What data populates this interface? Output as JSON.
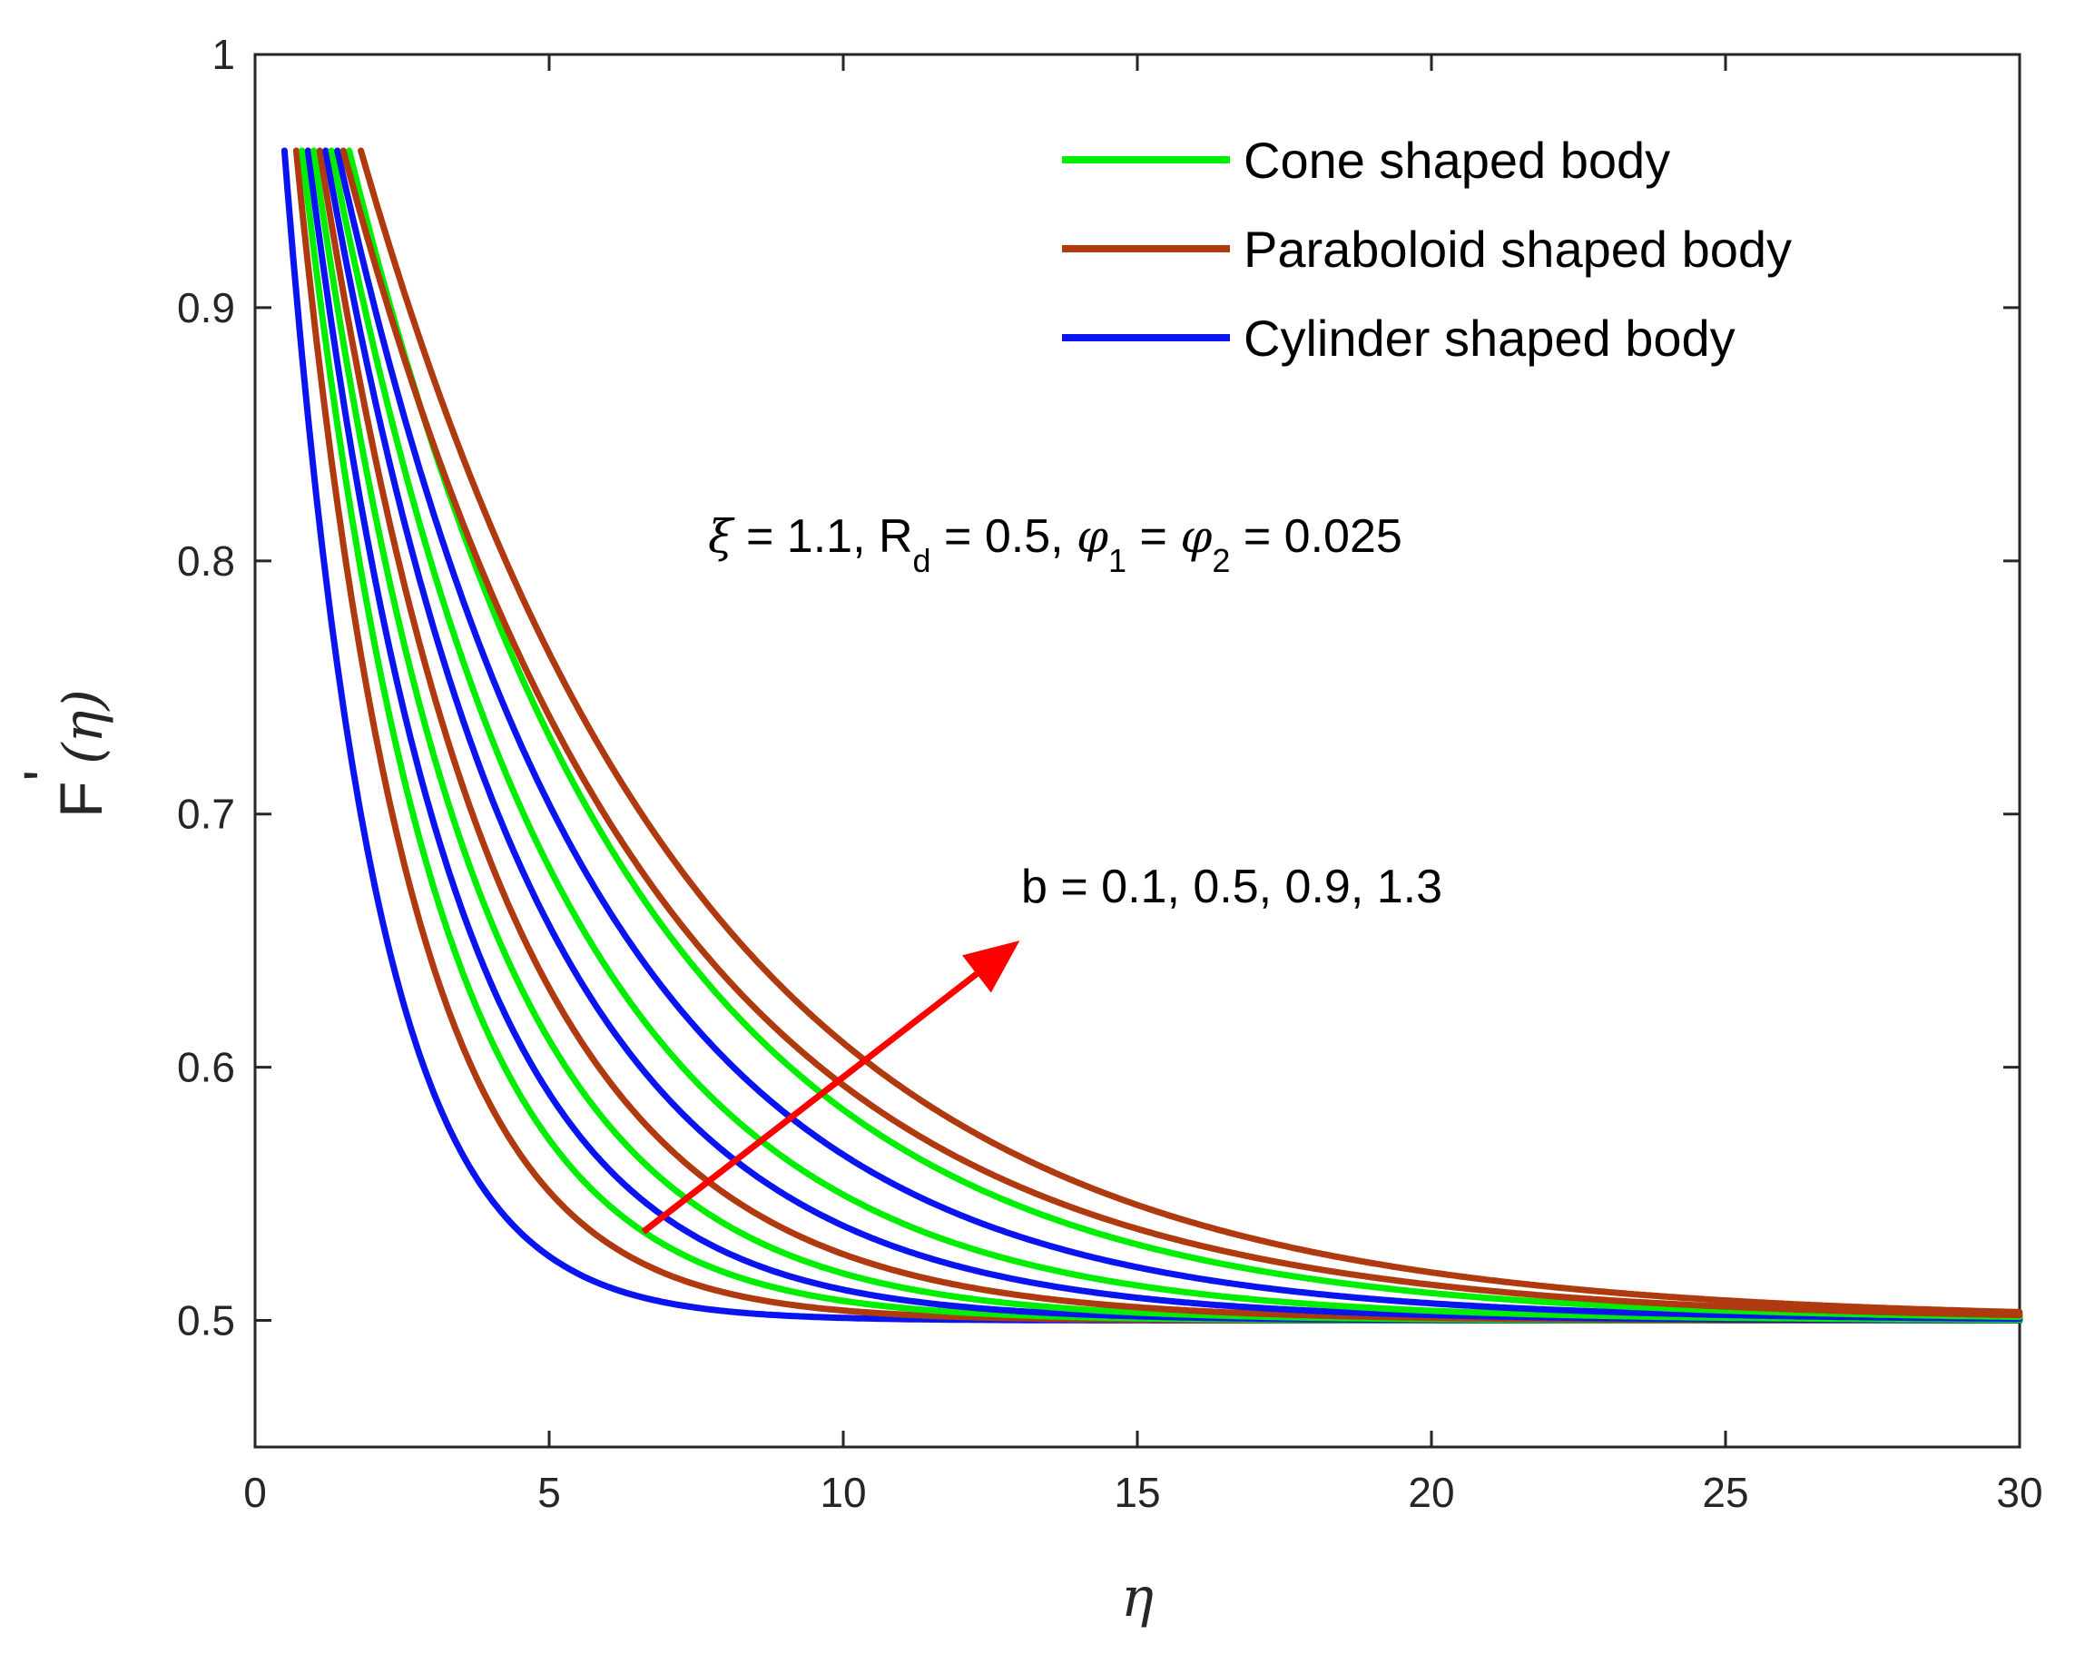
{
  "chart_data": {
    "type": "line",
    "xlabel": "η",
    "ylabel": "F'(η)",
    "ylabel_parts": {
      "main": "F",
      "prime": "'",
      "open": "(",
      "eta": "η",
      "close": ")"
    },
    "xlim": [
      0,
      30
    ],
    "ylim": [
      0.45,
      1.0
    ],
    "xticks": [
      0,
      5,
      10,
      15,
      20,
      25,
      30
    ],
    "xtick_labels": [
      "0",
      "5",
      "10",
      "15",
      "20",
      "25",
      "30"
    ],
    "yticks": [
      0.5,
      0.6,
      0.7,
      0.8,
      0.9,
      1.0
    ],
    "ytick_labels": [
      "0.5",
      "0.6",
      "0.7",
      "0.8",
      "0.9",
      "1"
    ],
    "legend": {
      "placement": "top-right",
      "entries": [
        {
          "label": "Cone shaped body",
          "color": "#00ee00"
        },
        {
          "label": "Paraboloid shaped body",
          "color": "#b03a10"
        },
        {
          "label": "Cylinder shaped body",
          "color": "#0a14f0"
        }
      ]
    },
    "annotation_params": {
      "xi": "ξ",
      "xi_val": " = 1.1, R",
      "rd_sub": "d",
      "rd_val": " = 0.5, ",
      "phi1": "φ",
      "phi1_sub": "1",
      "eq": " = ",
      "phi2": "φ",
      "phi2_sub": "2",
      "phi_val": " = 0.025"
    },
    "annotation_b": "b = 0.1, 0.5, 0.9, 1.3",
    "arrow": {
      "from": [
        6.6,
        0.535
      ],
      "to": [
        13.0,
        0.65
      ],
      "color": "#ff0000"
    },
    "asymptote": 0.5,
    "start_value": 0.962,
    "series": [
      {
        "name": "Cylinder shaped body",
        "b": 0.1,
        "color": "#0a14f0",
        "x_start": 0.5,
        "decay_length": 1.55
      },
      {
        "name": "Paraboloid shaped body",
        "b": 0.1,
        "color": "#b03a10",
        "x_start": 0.7,
        "decay_length": 1.95
      },
      {
        "name": "Cone shaped body",
        "b": 0.1,
        "color": "#00ee00",
        "x_start": 0.8,
        "decay_length": 2.25
      },
      {
        "name": "Cylinder shaped body",
        "b": 0.5,
        "color": "#0a14f0",
        "x_start": 0.9,
        "decay_length": 2.5
      },
      {
        "name": "Cone shaped body",
        "b": 0.5,
        "color": "#00ee00",
        "x_start": 1.0,
        "decay_length": 2.8
      },
      {
        "name": "Paraboloid shaped body",
        "b": 0.5,
        "color": "#b03a10",
        "x_start": 1.1,
        "decay_length": 3.1
      },
      {
        "name": "Cylinder shaped body",
        "b": 0.9,
        "color": "#0a14f0",
        "x_start": 1.2,
        "decay_length": 3.5
      },
      {
        "name": "Cone shaped body",
        "b": 0.9,
        "color": "#00ee00",
        "x_start": 1.3,
        "decay_length": 3.9
      },
      {
        "name": "Cylinder shaped body",
        "b": 1.3,
        "color": "#0a14f0",
        "x_start": 1.4,
        "decay_length": 4.4
      },
      {
        "name": "Cone shaped body",
        "b": 1.3,
        "color": "#00ee00",
        "x_start": 1.6,
        "decay_length": 4.9
      },
      {
        "name": "Paraboloid shaped body",
        "b": 0.9,
        "color": "#b03a10",
        "x_start": 1.5,
        "decay_length": 5.3
      },
      {
        "name": "Paraboloid shaped body",
        "b": 1.3,
        "color": "#b03a10",
        "x_start": 1.8,
        "decay_length": 5.7
      }
    ]
  }
}
